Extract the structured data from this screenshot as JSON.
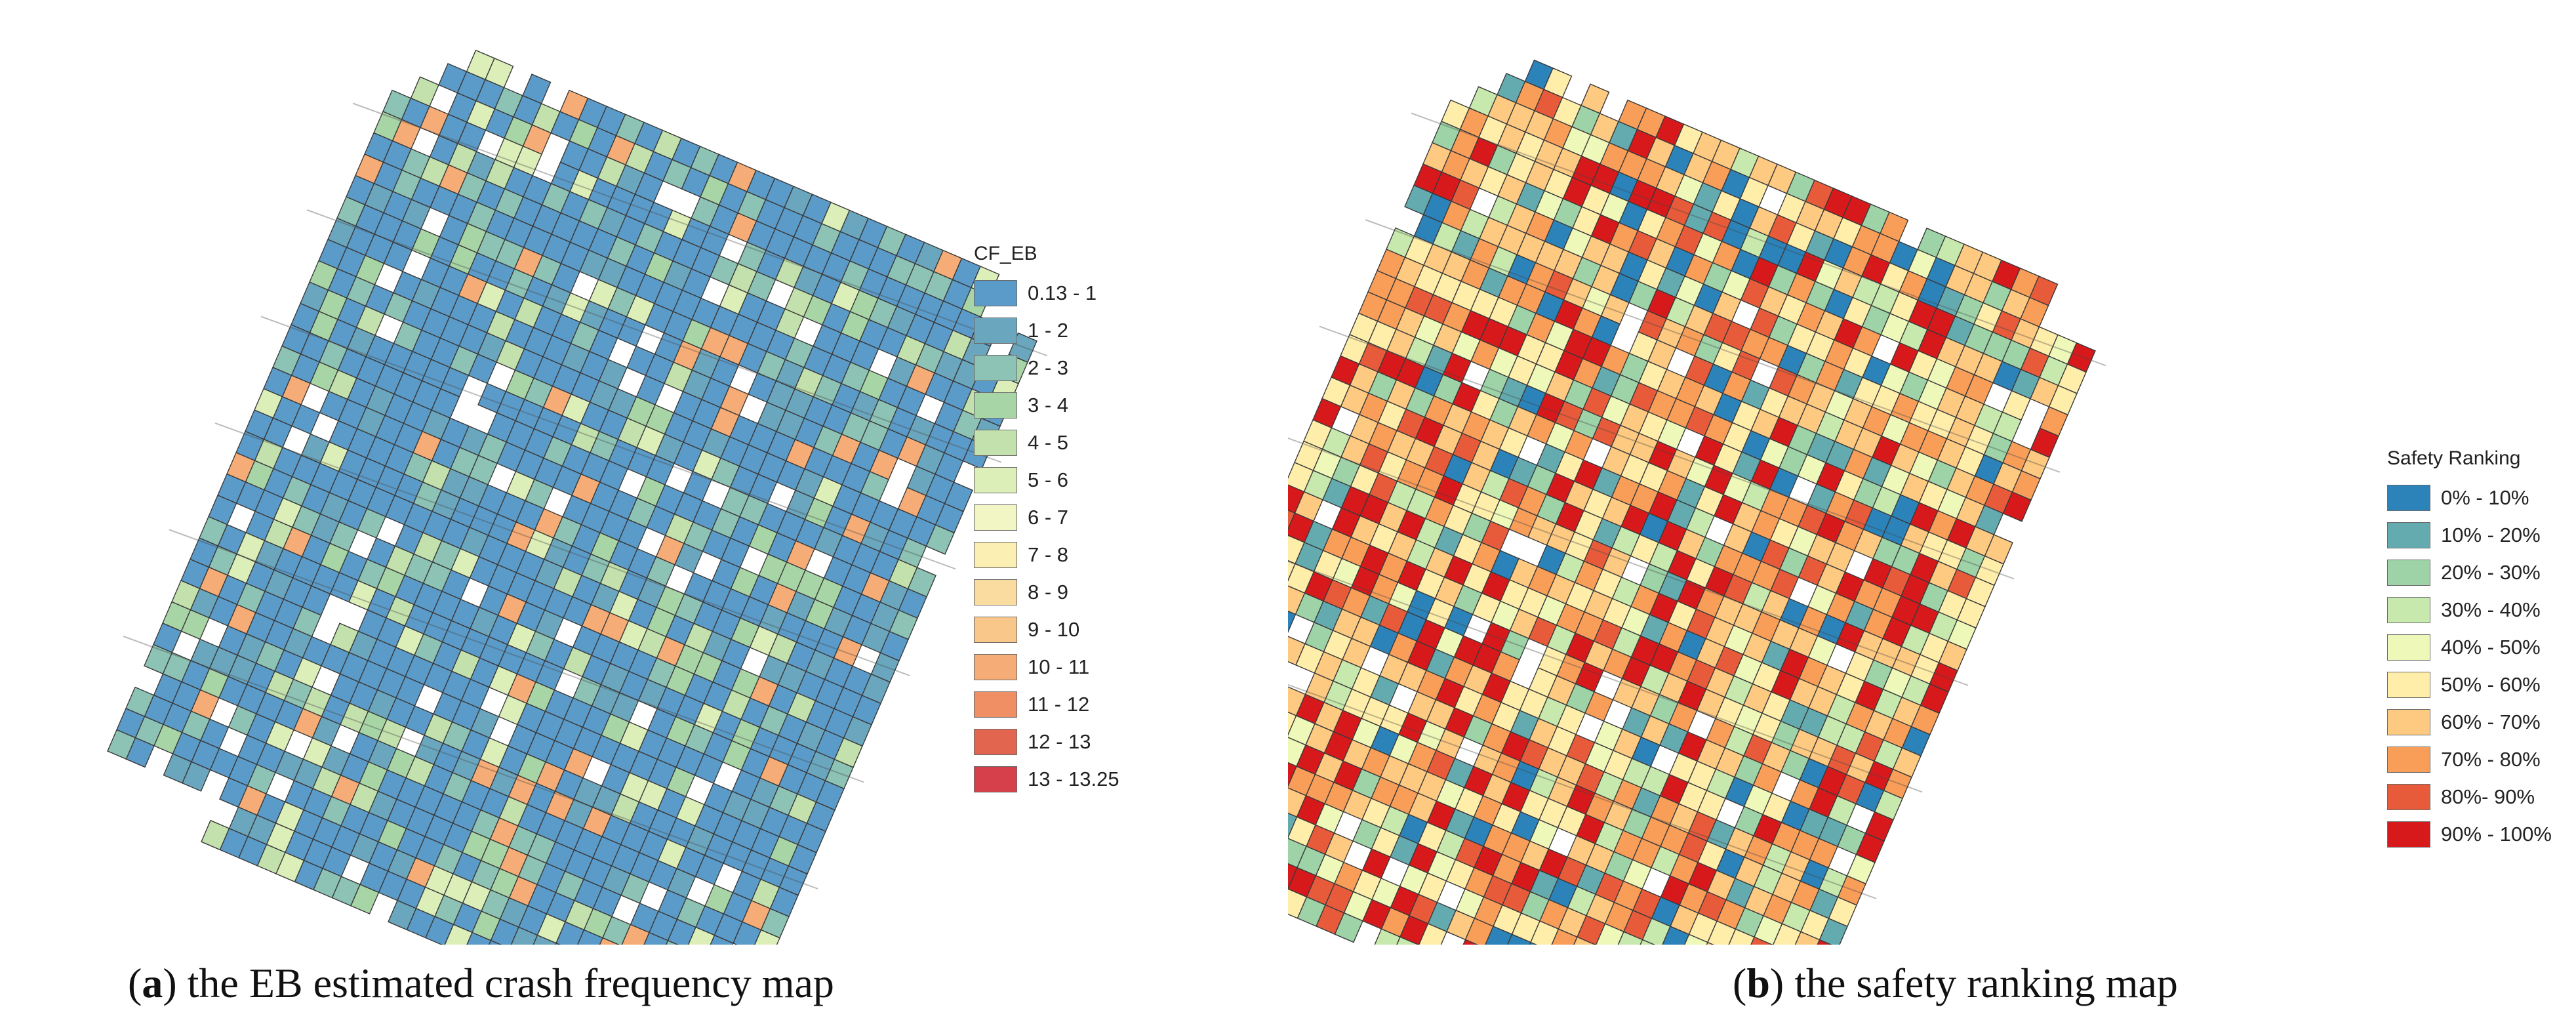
{
  "panels": [
    {
      "id": "a",
      "caption_letter": "a",
      "caption_text": "the EB estimated crash frequency map",
      "legend": {
        "title": "CF_EB",
        "items": [
          {
            "label": "0.13 - 1",
            "color": "#5b9bc9"
          },
          {
            "label": "1 - 2",
            "color": "#6aa7be"
          },
          {
            "label": "2 - 3",
            "color": "#8cc3b4"
          },
          {
            "label": "3 - 4",
            "color": "#a8d5a6"
          },
          {
            "label": "4 - 5",
            "color": "#c3e1ac"
          },
          {
            "label": "5 - 6",
            "color": "#dcefb9"
          },
          {
            "label": "6 - 7",
            "color": "#f2f6c4"
          },
          {
            "label": "7 - 8",
            "color": "#fbefb4"
          },
          {
            "label": "8 - 9",
            "color": "#fbdca0"
          },
          {
            "label": "9 - 10",
            "color": "#f9c78a"
          },
          {
            "label": "10 - 11",
            "color": "#f6ac76"
          },
          {
            "label": "11 - 12",
            "color": "#ef8f63"
          },
          {
            "label": "12 - 13",
            "color": "#e2664f"
          },
          {
            "label": "13 - 13.25",
            "color": "#d5404a"
          }
        ]
      },
      "dominant_classes": [
        0,
        0,
        0,
        0,
        0,
        0,
        0,
        0,
        0,
        0,
        1,
        1,
        2,
        2,
        3,
        4,
        5,
        10
      ]
    },
    {
      "id": "b",
      "caption_letter": "b",
      "caption_text": "the safety ranking map",
      "legend": {
        "title": "Safety Ranking",
        "items": [
          {
            "label": "0% - 10%",
            "color": "#2b83ba"
          },
          {
            "label": "10% - 20%",
            "color": "#64abb0"
          },
          {
            "label": "20% - 30%",
            "color": "#9dd3a7"
          },
          {
            "label": "30% - 40%",
            "color": "#c7e9ad"
          },
          {
            "label": "40% - 50%",
            "color": "#edf8b9"
          },
          {
            "label": "50% - 60%",
            "color": "#ffedaa"
          },
          {
            "label": "60% - 70%",
            "color": "#fec980"
          },
          {
            "label": "70% - 80%",
            "color": "#f99e59"
          },
          {
            "label": "80%- 90%",
            "color": "#e85b3a"
          },
          {
            "label": "90% - 100%",
            "color": "#d7191c"
          }
        ]
      },
      "dominant_classes": [
        0,
        1,
        2,
        3,
        4,
        5,
        5,
        6,
        6,
        6,
        7,
        7,
        8,
        9,
        9
      ]
    }
  ]
}
